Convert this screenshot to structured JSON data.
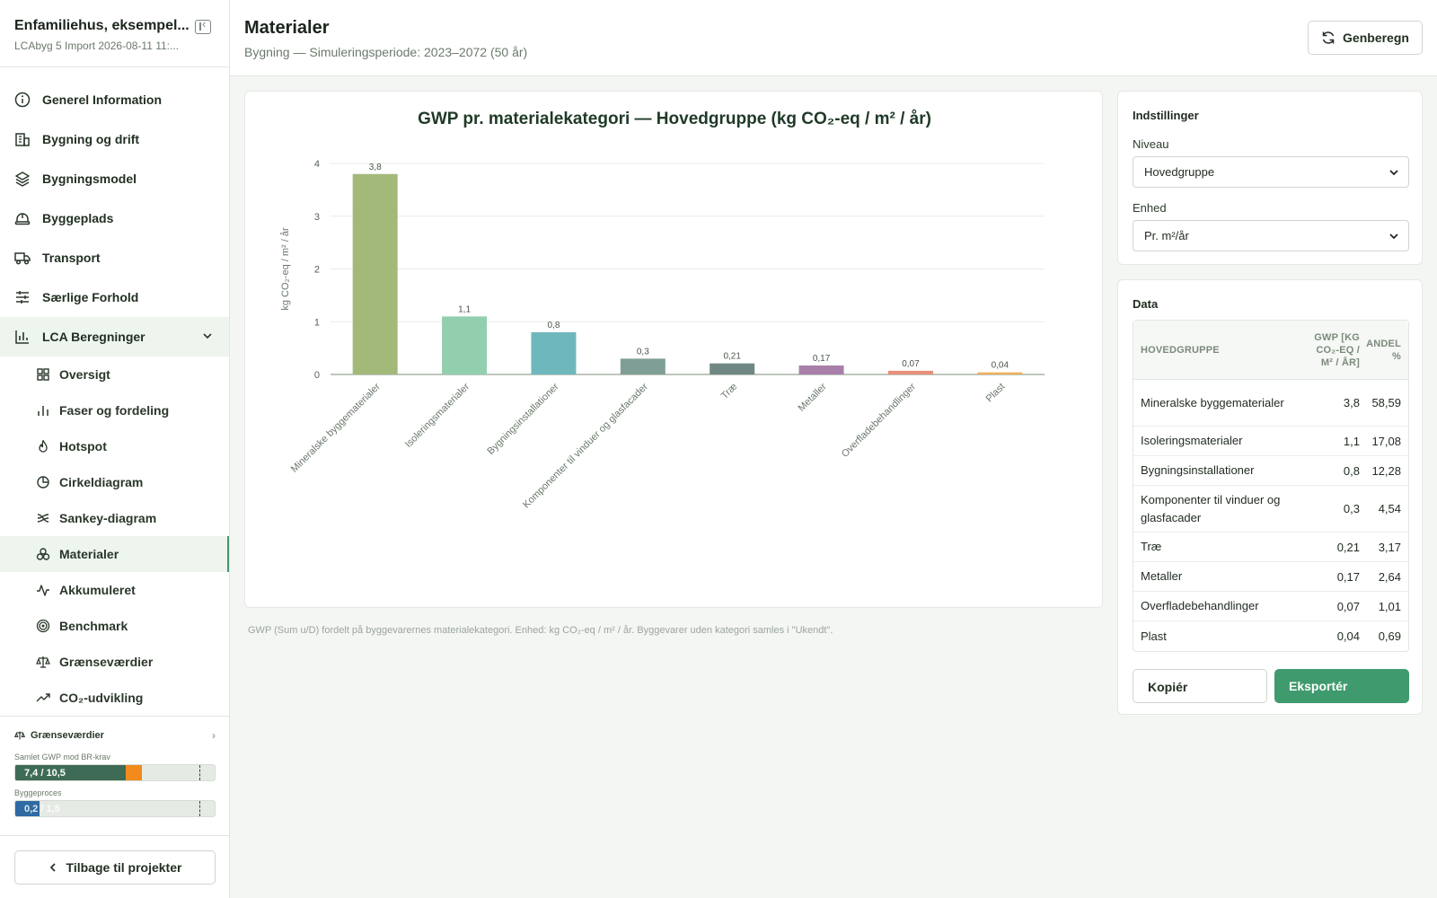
{
  "project": {
    "title": "Enfamiliehus, eksempel...",
    "subtitle": "LCAbyg 5 Import 2026-08-11 11:..."
  },
  "nav": {
    "items": [
      {
        "label": "Generel Information",
        "icon": "info-icon"
      },
      {
        "label": "Bygning og drift",
        "icon": "building-icon"
      },
      {
        "label": "Bygningsmodel",
        "icon": "layers-icon"
      },
      {
        "label": "Byggeplads",
        "icon": "helmet-icon"
      },
      {
        "label": "Transport",
        "icon": "truck-icon"
      },
      {
        "label": "Særlige Forhold",
        "icon": "sliders-icon"
      },
      {
        "label": "LCA Beregninger",
        "icon": "bar-chart-icon"
      }
    ],
    "sub_items": [
      {
        "label": "Oversigt",
        "icon": "grid-icon"
      },
      {
        "label": "Faser og fordeling",
        "icon": "bars-icon"
      },
      {
        "label": "Hotspot",
        "icon": "flame-icon"
      },
      {
        "label": "Cirkeldiagram",
        "icon": "pie-icon"
      },
      {
        "label": "Sankey-diagram",
        "icon": "sankey-icon"
      },
      {
        "label": "Materialer",
        "icon": "materials-icon"
      },
      {
        "label": "Akkumuleret",
        "icon": "activity-icon"
      },
      {
        "label": "Benchmark",
        "icon": "target-icon"
      },
      {
        "label": "Grænseværdier",
        "icon": "scale-icon"
      },
      {
        "label": "CO₂-udvikling",
        "icon": "trend-icon"
      }
    ]
  },
  "limits": {
    "title": "Grænseværdier",
    "total_label": "Samlet GWP mod BR-krav",
    "total_text": "7,4 / 10,5",
    "total_value": 7.4,
    "total_limit": 10.5,
    "build_label": "Byggeproces",
    "build_text": "0,2 / 1,5",
    "build_value": 0.2,
    "build_limit": 1.5,
    "colors": {
      "ok": "#3e6b55",
      "warn": "#f28a1c",
      "build": "#2f6aa3"
    }
  },
  "back_label": "Tilbage til projekter",
  "header": {
    "title": "Materialer",
    "subtitle": "Bygning — Simuleringsperiode: 2023–2072 (50 år)",
    "recalc_label": "Genberegn"
  },
  "chart_data": {
    "type": "bar",
    "title": "GWP pr. materialekategori — Hovedgruppe (kg CO₂-eq / m² / år)",
    "ylabel": "kg CO₂-eq / m² / år",
    "xlabel": "",
    "ylim": [
      0,
      4
    ],
    "yticks": [
      0,
      1,
      2,
      3,
      4
    ],
    "grid": true,
    "categories": [
      "Mineralske byggematerialer",
      "Isoleringsmaterialer",
      "Bygningsinstallationer",
      "Komponenter til vinduer og glasfacader",
      "Træ",
      "Metaller",
      "Overfladebehandlinger",
      "Plast"
    ],
    "values": [
      3.8,
      1.1,
      0.8,
      0.3,
      0.21,
      0.17,
      0.07,
      0.04
    ],
    "value_labels": [
      "3,8",
      "1,1",
      "0,8",
      "0,3",
      "0,21",
      "0,17",
      "0,07",
      "0,04"
    ],
    "colors": [
      "#a3b97a",
      "#92cfae",
      "#6eb8bd",
      "#7f9e96",
      "#6f8884",
      "#a97fa9",
      "#e8907a",
      "#f0b25b"
    ]
  },
  "footnote": "GWP (Sum u/D) fordelt på byggevarernes materialekategori. Enhed: kg CO₂-eq / m² / år. Byggevarer uden kategori samles i \"Ukendt\".",
  "settings": {
    "title": "Indstillinger",
    "level_label": "Niveau",
    "level_value": "Hovedgruppe",
    "unit_label": "Enhed",
    "unit_value": "Pr. m²/år"
  },
  "data_panel": {
    "title": "Data",
    "headers": {
      "name": "HOVEDGRUPPE",
      "gwp_1": "GWP [KG",
      "gwp_2": "CO₂-EQ /",
      "gwp_3": "M² / ÅR]",
      "pct_1": "ANDEL",
      "pct_2": "%"
    },
    "rows": [
      {
        "name": "Mineralske byggematerialer",
        "gwp": "3,8",
        "pct": "58,59"
      },
      {
        "name": "Isoleringsmaterialer",
        "gwp": "1,1",
        "pct": "17,08"
      },
      {
        "name": "Bygningsinstallationer",
        "gwp": "0,8",
        "pct": "12,28"
      },
      {
        "name": "Komponenter til vinduer og glasfacader",
        "gwp": "0,3",
        "pct": "4,54"
      },
      {
        "name": "Træ",
        "gwp": "0,21",
        "pct": "3,17"
      },
      {
        "name": "Metaller",
        "gwp": "0,17",
        "pct": "2,64"
      },
      {
        "name": "Overfladebehandlinger",
        "gwp": "0,07",
        "pct": "1,01"
      },
      {
        "name": "Plast",
        "gwp": "0,04",
        "pct": "0,69"
      }
    ],
    "copy_label": "Kopiér",
    "export_label": "Eksportér"
  }
}
